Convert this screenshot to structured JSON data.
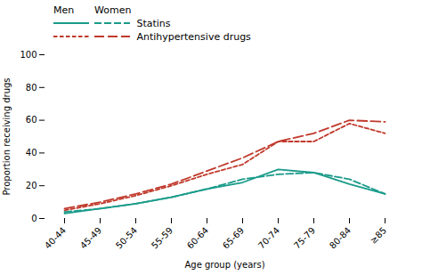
{
  "chart_data": {
    "type": "line",
    "xlabel": "Age group (years)",
    "ylabel": "Proportion receiving drugs",
    "categories": [
      "40-44",
      "45-49",
      "50-54",
      "55-59",
      "60-64",
      "65-69",
      "70-74",
      "75-79",
      "80-84",
      "≥85"
    ],
    "columns": [
      "Men",
      "Women"
    ],
    "series": [
      {
        "name": "Statins",
        "column": "Men",
        "color": "#1a9b8a",
        "line_style": "solid",
        "values": [
          3,
          6,
          9,
          13,
          18,
          22,
          30,
          28,
          21,
          15
        ]
      },
      {
        "name": "Statins",
        "column": "Women",
        "color": "#1a9b8a",
        "line_style": "dashed",
        "values": [
          4,
          6,
          9,
          13,
          18,
          24,
          27,
          28,
          24,
          15
        ]
      },
      {
        "name": "Antihypertensive drugs",
        "column": "Men",
        "color": "#c0392b",
        "line_style": "short-dashed",
        "values": [
          5,
          9,
          14,
          20,
          27,
          33,
          47,
          47,
          58,
          52
        ]
      },
      {
        "name": "Antihypertensive drugs",
        "column": "Women",
        "color": "#c0392b",
        "line_style": "long-dashed",
        "values": [
          6,
          10,
          15,
          21,
          29,
          37,
          47,
          52,
          60,
          59
        ]
      }
    ],
    "ylim": [
      0,
      100
    ],
    "yticks": [
      0,
      20,
      40,
      60,
      80,
      100
    ],
    "grid": false,
    "legend": "upper left"
  }
}
